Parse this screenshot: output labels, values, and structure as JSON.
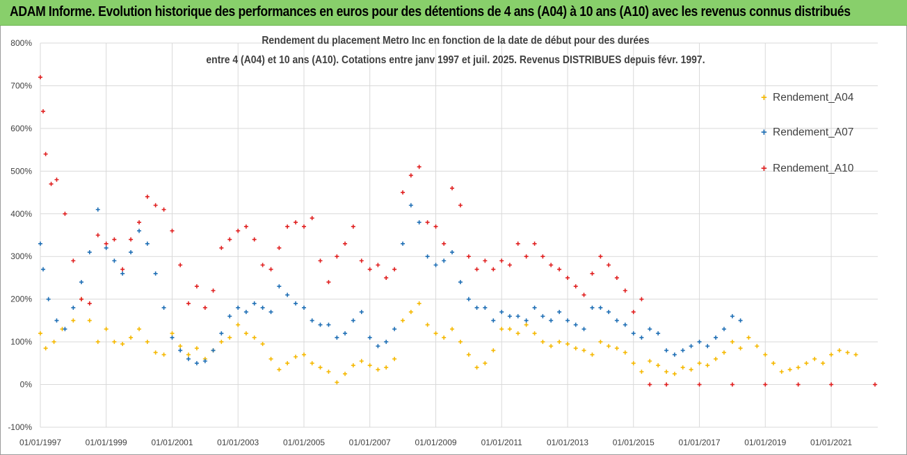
{
  "banner": {
    "title": "ADAM Informe. Evolution historique des performances en euros pour des détentions de 4 ans (A04) à 10 ans (A10) avec les revenus connus distribués"
  },
  "chart_data": {
    "type": "scatter",
    "title_line1": "Rendement du placement Metro Inc en fonction de la date de début pour des durées",
    "title_line2": "entre 4 (A04) et 10 ans (A10).  Cotations entre janv 1997 et juil. 2025. Revenus DISTRIBUES depuis févr. 1997.",
    "x_axis_type": "date",
    "x_ticks": [
      "01/01/1997",
      "01/01/1999",
      "01/01/2001",
      "01/01/2003",
      "01/01/2005",
      "01/01/2007",
      "01/01/2009",
      "01/01/2011",
      "01/01/2013",
      "01/01/2015",
      "01/01/2017",
      "01/01/2019",
      "01/01/2021"
    ],
    "xlim": [
      "1997-01-01",
      "2022-06-01"
    ],
    "ylim": [
      -100,
      800
    ],
    "y_ticks": [
      -100,
      0,
      100,
      200,
      300,
      400,
      500,
      600,
      700,
      800
    ],
    "y_tick_labels": [
      "-100%",
      "0%",
      "100%",
      "200%",
      "300%",
      "400%",
      "500%",
      "600%",
      "700%",
      "800%"
    ],
    "grid": "horizontal",
    "legend_position": "right",
    "marker": "+",
    "series": [
      {
        "name": "Rendement_A04",
        "color": "#f5b800",
        "points": [
          [
            "1997-01-01",
            120
          ],
          [
            "1997-03-01",
            85
          ],
          [
            "1997-06-01",
            100
          ],
          [
            "1997-09-01",
            130
          ],
          [
            "1998-01-01",
            150
          ],
          [
            "1998-04-01",
            200
          ],
          [
            "1998-07-01",
            150
          ],
          [
            "1998-10-01",
            100
          ],
          [
            "1999-01-01",
            130
          ],
          [
            "1999-04-01",
            100
          ],
          [
            "1999-07-01",
            95
          ],
          [
            "1999-10-01",
            110
          ],
          [
            "2000-01-01",
            130
          ],
          [
            "2000-04-01",
            100
          ],
          [
            "2000-07-01",
            75
          ],
          [
            "2000-10-01",
            70
          ],
          [
            "2001-01-01",
            120
          ],
          [
            "2001-04-01",
            90
          ],
          [
            "2001-07-01",
            70
          ],
          [
            "2001-10-01",
            85
          ],
          [
            "2002-01-01",
            60
          ],
          [
            "2002-04-01",
            80
          ],
          [
            "2002-07-01",
            100
          ],
          [
            "2002-10-01",
            110
          ],
          [
            "2003-01-01",
            140
          ],
          [
            "2003-04-01",
            120
          ],
          [
            "2003-07-01",
            110
          ],
          [
            "2003-10-01",
            95
          ],
          [
            "2004-01-01",
            60
          ],
          [
            "2004-04-01",
            35
          ],
          [
            "2004-07-01",
            50
          ],
          [
            "2004-10-01",
            65
          ],
          [
            "2005-01-01",
            70
          ],
          [
            "2005-04-01",
            50
          ],
          [
            "2005-07-01",
            40
          ],
          [
            "2005-10-01",
            30
          ],
          [
            "2006-01-01",
            5
          ],
          [
            "2006-04-01",
            25
          ],
          [
            "2006-07-01",
            45
          ],
          [
            "2006-10-01",
            55
          ],
          [
            "2007-01-01",
            45
          ],
          [
            "2007-04-01",
            35
          ],
          [
            "2007-07-01",
            40
          ],
          [
            "2007-10-01",
            60
          ],
          [
            "2008-01-01",
            150
          ],
          [
            "2008-04-01",
            170
          ],
          [
            "2008-07-01",
            190
          ],
          [
            "2008-10-01",
            140
          ],
          [
            "2009-01-01",
            120
          ],
          [
            "2009-04-01",
            110
          ],
          [
            "2009-07-01",
            130
          ],
          [
            "2009-10-01",
            100
          ],
          [
            "2010-01-01",
            70
          ],
          [
            "2010-04-01",
            40
          ],
          [
            "2010-07-01",
            50
          ],
          [
            "2010-10-01",
            80
          ],
          [
            "2011-01-01",
            130
          ],
          [
            "2011-04-01",
            130
          ],
          [
            "2011-07-01",
            120
          ],
          [
            "2011-10-01",
            140
          ],
          [
            "2012-01-01",
            120
          ],
          [
            "2012-04-01",
            100
          ],
          [
            "2012-07-01",
            90
          ],
          [
            "2012-10-01",
            100
          ],
          [
            "2013-01-01",
            95
          ],
          [
            "2013-04-01",
            85
          ],
          [
            "2013-07-01",
            80
          ],
          [
            "2013-10-01",
            70
          ],
          [
            "2014-01-01",
            100
          ],
          [
            "2014-04-01",
            90
          ],
          [
            "2014-07-01",
            85
          ],
          [
            "2014-10-01",
            75
          ],
          [
            "2015-01-01",
            50
          ],
          [
            "2015-04-01",
            30
          ],
          [
            "2015-07-01",
            55
          ],
          [
            "2015-10-01",
            45
          ],
          [
            "2016-01-01",
            30
          ],
          [
            "2016-04-01",
            25
          ],
          [
            "2016-07-01",
            40
          ],
          [
            "2016-10-01",
            35
          ],
          [
            "2017-01-01",
            50
          ],
          [
            "2017-04-01",
            45
          ],
          [
            "2017-07-01",
            60
          ],
          [
            "2017-10-01",
            75
          ],
          [
            "2018-01-01",
            100
          ],
          [
            "2018-04-01",
            85
          ],
          [
            "2018-07-01",
            110
          ],
          [
            "2018-10-01",
            90
          ],
          [
            "2019-01-01",
            70
          ],
          [
            "2019-04-01",
            50
          ],
          [
            "2019-07-01",
            30
          ],
          [
            "2019-10-01",
            35
          ],
          [
            "2020-01-01",
            40
          ],
          [
            "2020-04-01",
            50
          ],
          [
            "2020-07-01",
            60
          ],
          [
            "2020-10-01",
            50
          ],
          [
            "2021-01-01",
            70
          ],
          [
            "2021-04-01",
            80
          ],
          [
            "2021-07-01",
            75
          ],
          [
            "2021-10-01",
            70
          ]
        ]
      },
      {
        "name": "Rendement_A07",
        "color": "#1f6fb5",
        "points": [
          [
            "1997-01-01",
            330
          ],
          [
            "1997-02-01",
            270
          ],
          [
            "1997-04-01",
            200
          ],
          [
            "1997-07-01",
            150
          ],
          [
            "1997-10-01",
            130
          ],
          [
            "1998-01-01",
            180
          ],
          [
            "1998-04-01",
            240
          ],
          [
            "1998-07-01",
            310
          ],
          [
            "1998-10-01",
            410
          ],
          [
            "1999-01-01",
            320
          ],
          [
            "1999-04-01",
            290
          ],
          [
            "1999-07-01",
            260
          ],
          [
            "1999-10-01",
            310
          ],
          [
            "2000-01-01",
            360
          ],
          [
            "2000-04-01",
            330
          ],
          [
            "2000-07-01",
            260
          ],
          [
            "2000-10-01",
            180
          ],
          [
            "2001-01-01",
            110
          ],
          [
            "2001-04-01",
            80
          ],
          [
            "2001-07-01",
            60
          ],
          [
            "2001-10-01",
            50
          ],
          [
            "2002-01-01",
            55
          ],
          [
            "2002-04-01",
            80
          ],
          [
            "2002-07-01",
            120
          ],
          [
            "2002-10-01",
            160
          ],
          [
            "2003-01-01",
            180
          ],
          [
            "2003-04-01",
            170
          ],
          [
            "2003-07-01",
            190
          ],
          [
            "2003-10-01",
            180
          ],
          [
            "2004-01-01",
            170
          ],
          [
            "2004-04-01",
            230
          ],
          [
            "2004-07-01",
            210
          ],
          [
            "2004-10-01",
            190
          ],
          [
            "2005-01-01",
            180
          ],
          [
            "2005-04-01",
            150
          ],
          [
            "2005-07-01",
            140
          ],
          [
            "2005-10-01",
            140
          ],
          [
            "2006-01-01",
            110
          ],
          [
            "2006-04-01",
            120
          ],
          [
            "2006-07-01",
            150
          ],
          [
            "2006-10-01",
            170
          ],
          [
            "2007-01-01",
            110
          ],
          [
            "2007-04-01",
            90
          ],
          [
            "2007-07-01",
            100
          ],
          [
            "2007-10-01",
            130
          ],
          [
            "2008-01-01",
            330
          ],
          [
            "2008-04-01",
            420
          ],
          [
            "2008-07-01",
            380
          ],
          [
            "2008-10-01",
            300
          ],
          [
            "2009-01-01",
            280
          ],
          [
            "2009-04-01",
            290
          ],
          [
            "2009-07-01",
            310
          ],
          [
            "2009-10-01",
            240
          ],
          [
            "2010-01-01",
            200
          ],
          [
            "2010-04-01",
            180
          ],
          [
            "2010-07-01",
            180
          ],
          [
            "2010-10-01",
            150
          ],
          [
            "2011-01-01",
            170
          ],
          [
            "2011-04-01",
            160
          ],
          [
            "2011-07-01",
            160
          ],
          [
            "2011-10-01",
            150
          ],
          [
            "2012-01-01",
            180
          ],
          [
            "2012-04-01",
            160
          ],
          [
            "2012-07-01",
            150
          ],
          [
            "2012-10-01",
            170
          ],
          [
            "2013-01-01",
            150
          ],
          [
            "2013-04-01",
            140
          ],
          [
            "2013-07-01",
            130
          ],
          [
            "2013-10-01",
            180
          ],
          [
            "2014-01-01",
            180
          ],
          [
            "2014-04-01",
            170
          ],
          [
            "2014-07-01",
            150
          ],
          [
            "2014-10-01",
            140
          ],
          [
            "2015-01-01",
            120
          ],
          [
            "2015-04-01",
            110
          ],
          [
            "2015-07-01",
            130
          ],
          [
            "2015-10-01",
            120
          ],
          [
            "2016-01-01",
            80
          ],
          [
            "2016-04-01",
            70
          ],
          [
            "2016-07-01",
            80
          ],
          [
            "2016-10-01",
            90
          ],
          [
            "2017-01-01",
            100
          ],
          [
            "2017-04-01",
            90
          ],
          [
            "2017-07-01",
            110
          ],
          [
            "2017-10-01",
            130
          ],
          [
            "2018-01-01",
            160
          ],
          [
            "2018-04-01",
            150
          ]
        ]
      },
      {
        "name": "Rendement_A10",
        "color": "#e02020",
        "points": [
          [
            "1997-01-01",
            720
          ],
          [
            "1997-02-01",
            640
          ],
          [
            "1997-03-01",
            540
          ],
          [
            "1997-05-01",
            470
          ],
          [
            "1997-07-01",
            480
          ],
          [
            "1997-10-01",
            400
          ],
          [
            "1998-01-01",
            290
          ],
          [
            "1998-04-01",
            200
          ],
          [
            "1998-07-01",
            190
          ],
          [
            "1998-10-01",
            350
          ],
          [
            "1999-01-01",
            330
          ],
          [
            "1999-04-01",
            340
          ],
          [
            "1999-07-01",
            270
          ],
          [
            "1999-10-01",
            340
          ],
          [
            "2000-01-01",
            380
          ],
          [
            "2000-04-01",
            440
          ],
          [
            "2000-07-01",
            420
          ],
          [
            "2000-10-01",
            410
          ],
          [
            "2001-01-01",
            360
          ],
          [
            "2001-04-01",
            280
          ],
          [
            "2001-07-01",
            190
          ],
          [
            "2001-10-01",
            230
          ],
          [
            "2002-01-01",
            180
          ],
          [
            "2002-04-01",
            220
          ],
          [
            "2002-07-01",
            320
          ],
          [
            "2002-10-01",
            340
          ],
          [
            "2003-01-01",
            360
          ],
          [
            "2003-04-01",
            370
          ],
          [
            "2003-07-01",
            340
          ],
          [
            "2003-10-01",
            280
          ],
          [
            "2004-01-01",
            270
          ],
          [
            "2004-04-01",
            320
          ],
          [
            "2004-07-01",
            370
          ],
          [
            "2004-10-01",
            380
          ],
          [
            "2005-01-01",
            370
          ],
          [
            "2005-04-01",
            390
          ],
          [
            "2005-07-01",
            290
          ],
          [
            "2005-10-01",
            240
          ],
          [
            "2006-01-01",
            300
          ],
          [
            "2006-04-01",
            330
          ],
          [
            "2006-07-01",
            370
          ],
          [
            "2006-10-01",
            290
          ],
          [
            "2007-01-01",
            270
          ],
          [
            "2007-04-01",
            280
          ],
          [
            "2007-07-01",
            250
          ],
          [
            "2007-10-01",
            270
          ],
          [
            "2008-01-01",
            450
          ],
          [
            "2008-04-01",
            490
          ],
          [
            "2008-07-01",
            510
          ],
          [
            "2008-10-01",
            380
          ],
          [
            "2009-01-01",
            370
          ],
          [
            "2009-04-01",
            330
          ],
          [
            "2009-07-01",
            460
          ],
          [
            "2009-10-01",
            420
          ],
          [
            "2010-01-01",
            300
          ],
          [
            "2010-04-01",
            270
          ],
          [
            "2010-07-01",
            290
          ],
          [
            "2010-10-01",
            270
          ],
          [
            "2011-01-01",
            290
          ],
          [
            "2011-04-01",
            280
          ],
          [
            "2011-07-01",
            330
          ],
          [
            "2011-10-01",
            300
          ],
          [
            "2012-01-01",
            330
          ],
          [
            "2012-04-01",
            300
          ],
          [
            "2012-07-01",
            280
          ],
          [
            "2012-10-01",
            270
          ],
          [
            "2013-01-01",
            250
          ],
          [
            "2013-04-01",
            230
          ],
          [
            "2013-07-01",
            210
          ],
          [
            "2013-10-01",
            260
          ],
          [
            "2014-01-01",
            300
          ],
          [
            "2014-04-01",
            280
          ],
          [
            "2014-07-01",
            250
          ],
          [
            "2014-10-01",
            220
          ],
          [
            "2015-01-01",
            170
          ],
          [
            "2015-04-01",
            200
          ],
          [
            "2015-07-01",
            0
          ],
          [
            "2016-01-01",
            0
          ],
          [
            "2017-01-01",
            0
          ],
          [
            "2018-01-01",
            0
          ],
          [
            "2019-01-01",
            0
          ],
          [
            "2020-01-01",
            0
          ],
          [
            "2021-01-01",
            0
          ],
          [
            "2022-05-01",
            0
          ]
        ]
      }
    ]
  }
}
